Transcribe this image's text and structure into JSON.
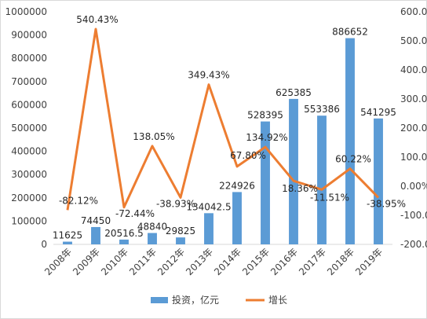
{
  "chart_data": {
    "type": "bar+line",
    "categories": [
      "2008年",
      "2009年",
      "2010年",
      "2011年",
      "2012年",
      "2013年",
      "2014年",
      "2015年",
      "2016年",
      "2017年",
      "2018年",
      "2019年"
    ],
    "series": [
      {
        "name": "投资，亿元",
        "type": "bar",
        "axis": "left",
        "color": "#5b9bd5",
        "values": [
          11625,
          74450,
          20516.5,
          48840,
          29825,
          134042.5,
          224926,
          528395,
          625385,
          553386,
          886652,
          541295
        ],
        "labels": [
          "11625",
          "74450",
          "20516.5",
          "48840",
          "29825",
          "134042.5",
          "224926",
          "528395",
          "625385",
          "553386",
          "886652",
          "541295"
        ]
      },
      {
        "name": "增长",
        "type": "line",
        "axis": "right",
        "color": "#ed7d31",
        "values": [
          -82.12,
          540.43,
          -72.44,
          138.05,
          -38.93,
          349.43,
          67.8,
          134.92,
          18.36,
          -11.51,
          60.22,
          -38.95
        ],
        "labels": [
          "-82.12%",
          "540.43%",
          "-72.44%",
          "138.05%",
          "-38.93%",
          "349.43%",
          "67.80%",
          "134.92%",
          "18.36%",
          "-11.51%",
          "60.22%",
          "-38.95%"
        ]
      }
    ],
    "y_left": {
      "ylim": [
        0,
        1000000
      ],
      "ticks": [
        "0",
        "100000",
        "200000",
        "300000",
        "400000",
        "500000",
        "600000",
        "700000",
        "800000",
        "900000",
        "1000000"
      ]
    },
    "y_right": {
      "ylim": [
        -200,
        600
      ],
      "ticks": [
        "-200.00%",
        "-100.00%",
        "0.00%",
        "100.00%",
        "200.00%",
        "300.00%",
        "400.00%",
        "500.00%",
        "600.00%"
      ]
    },
    "legend": {
      "position": "bottom",
      "entries": [
        "投资，亿元",
        "增长"
      ]
    },
    "grid": false
  }
}
